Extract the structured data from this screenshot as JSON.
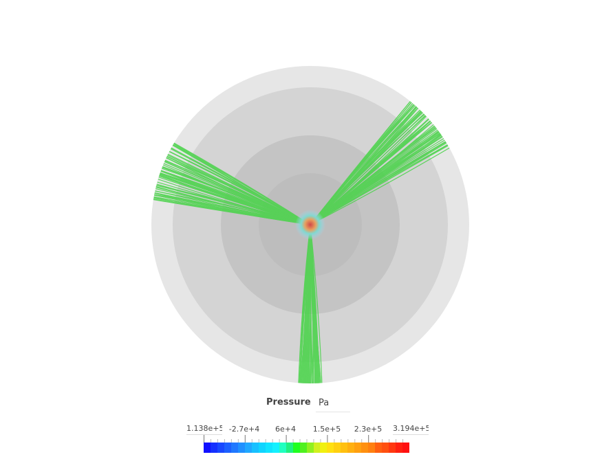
{
  "legend": {
    "title": "Pressure",
    "unit": "Pa",
    "min": "1.138e+5",
    "max": "3.194e+5",
    "ticks": [
      "-2.7e+4",
      "6e+4",
      "1.5e+5",
      "2.3e+5"
    ],
    "colors": [
      "#1010ff",
      "#1430ff",
      "#1848ff",
      "#1c60ff",
      "#2078ff",
      "#2090ff",
      "#20a8ff",
      "#18c0ff",
      "#10d4ff",
      "#10e4ff",
      "#14f0ff",
      "#20ffc0",
      "#20f080",
      "#20ff20",
      "#50f020",
      "#90f020",
      "#d0f020",
      "#f0f010",
      "#ffe010",
      "#ffd010",
      "#ffc010",
      "#ffb010",
      "#ffa010",
      "#ff9010",
      "#ff8010",
      "#ff6010",
      "#ff5010",
      "#ff3810",
      "#ff2010",
      "#ff1010"
    ]
  },
  "scene": {
    "streamline_color": "#4ed34e",
    "hotspot_color": "#d85050"
  }
}
